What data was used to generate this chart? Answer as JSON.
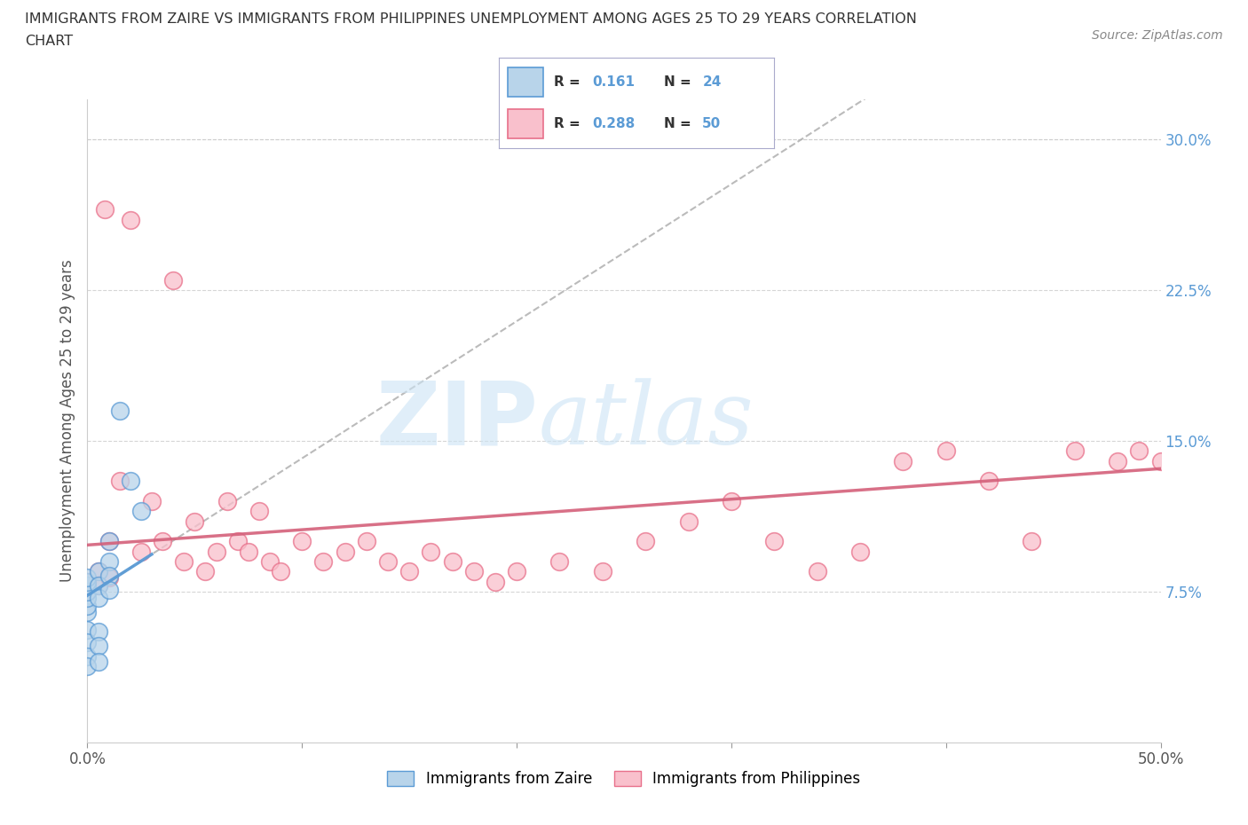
{
  "title_line1": "IMMIGRANTS FROM ZAIRE VS IMMIGRANTS FROM PHILIPPINES UNEMPLOYMENT AMONG AGES 25 TO 29 YEARS CORRELATION",
  "title_line2": "CHART",
  "source": "Source: ZipAtlas.com",
  "ylabel": "Unemployment Among Ages 25 to 29 years",
  "xlim": [
    0.0,
    0.5
  ],
  "ylim": [
    0.0,
    0.32
  ],
  "xticks": [
    0.0,
    0.1,
    0.2,
    0.3,
    0.4,
    0.5
  ],
  "xticklabels": [
    "0.0%",
    "",
    "",
    "",
    "",
    "50.0%"
  ],
  "yticks": [
    0.075,
    0.15,
    0.225,
    0.3
  ],
  "yticklabels": [
    "7.5%",
    "15.0%",
    "22.5%",
    "30.0%"
  ],
  "zaire_r": 0.161,
  "zaire_n": 24,
  "phil_r": 0.288,
  "phil_n": 50,
  "zaire_fill_color": "#b8d4ea",
  "zaire_edge_color": "#5b9bd5",
  "phil_fill_color": "#f9c0cc",
  "phil_edge_color": "#e8708a",
  "zaire_trendline_color": "#5b9bd5",
  "phil_trendline_color": "#d4607a",
  "grey_dashed_color": "#aaaaaa",
  "watermark_color": "#cce4f5",
  "legend_border_color": "#aaaacc",
  "zaire_scatter_x": [
    0.0,
    0.0,
    0.0,
    0.0,
    0.0,
    0.0,
    0.0,
    0.0,
    0.0,
    0.0,
    0.0,
    0.005,
    0.005,
    0.005,
    0.005,
    0.005,
    0.005,
    0.01,
    0.01,
    0.01,
    0.01,
    0.015,
    0.02,
    0.025
  ],
  "zaire_scatter_y": [
    0.065,
    0.068,
    0.072,
    0.075,
    0.078,
    0.08,
    0.082,
    0.056,
    0.05,
    0.043,
    0.038,
    0.085,
    0.078,
    0.072,
    0.055,
    0.048,
    0.04,
    0.1,
    0.09,
    0.083,
    0.076,
    0.165,
    0.13,
    0.115
  ],
  "phil_scatter_x": [
    0.0,
    0.0,
    0.005,
    0.005,
    0.008,
    0.01,
    0.01,
    0.015,
    0.02,
    0.025,
    0.03,
    0.035,
    0.04,
    0.045,
    0.05,
    0.055,
    0.06,
    0.065,
    0.07,
    0.075,
    0.08,
    0.085,
    0.09,
    0.1,
    0.11,
    0.12,
    0.13,
    0.14,
    0.15,
    0.16,
    0.17,
    0.18,
    0.19,
    0.2,
    0.22,
    0.24,
    0.26,
    0.28,
    0.3,
    0.32,
    0.34,
    0.36,
    0.38,
    0.4,
    0.42,
    0.44,
    0.46,
    0.48,
    0.49,
    0.5
  ],
  "phil_scatter_y": [
    0.08,
    0.075,
    0.085,
    0.078,
    0.265,
    0.1,
    0.082,
    0.13,
    0.26,
    0.095,
    0.12,
    0.1,
    0.23,
    0.09,
    0.11,
    0.085,
    0.095,
    0.12,
    0.1,
    0.095,
    0.115,
    0.09,
    0.085,
    0.1,
    0.09,
    0.095,
    0.1,
    0.09,
    0.085,
    0.095,
    0.09,
    0.085,
    0.08,
    0.085,
    0.09,
    0.085,
    0.1,
    0.11,
    0.12,
    0.1,
    0.085,
    0.095,
    0.14,
    0.145,
    0.13,
    0.1,
    0.145,
    0.14,
    0.145,
    0.14
  ]
}
